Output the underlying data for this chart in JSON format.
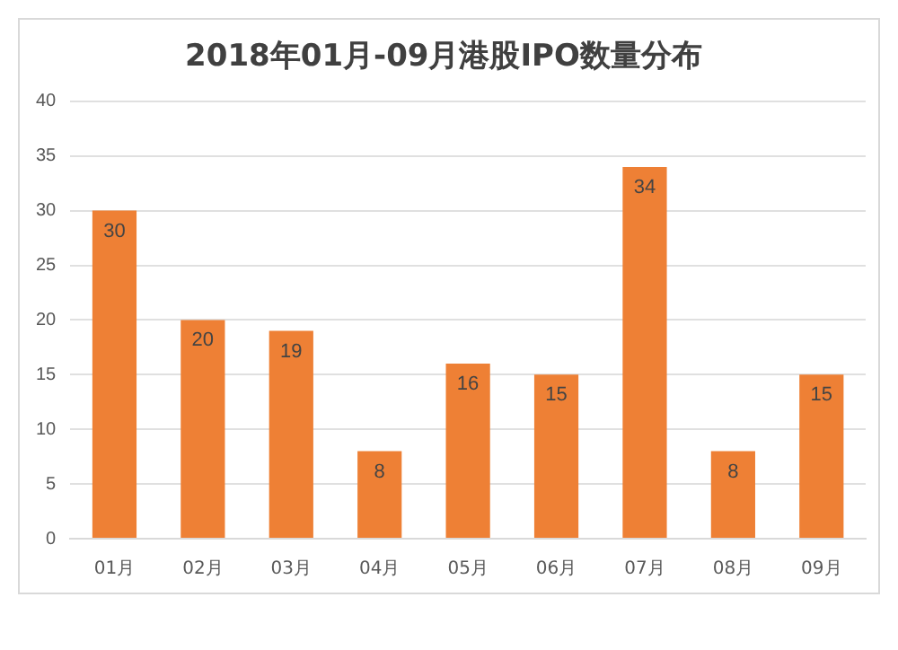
{
  "chart_data": {
    "type": "bar",
    "title": "2018年01月-09月港股IPO数量分布",
    "categories": [
      "01月",
      "02月",
      "03月",
      "04月",
      "05月",
      "06月",
      "07月",
      "08月",
      "09月"
    ],
    "values": [
      30,
      20,
      19,
      8,
      16,
      15,
      34,
      8,
      15
    ],
    "color": "#ee8035",
    "ylim": [
      0,
      40
    ],
    "yticks": [
      0,
      5,
      10,
      15,
      20,
      25,
      30,
      35,
      40
    ],
    "grid": "y",
    "data_labels": true
  }
}
